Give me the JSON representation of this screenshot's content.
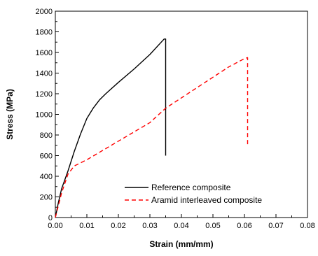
{
  "chart_data": {
    "type": "line",
    "xlabel": "Strain (mm/mm)",
    "ylabel": "Stress (MPa)",
    "xlim": [
      0,
      0.08
    ],
    "ylim": [
      0,
      2000
    ],
    "xticks": [
      "0.00",
      "0.01",
      "0.02",
      "0.03",
      "0.04",
      "0.05",
      "0.06",
      "0.07",
      "0.08"
    ],
    "yticks": [
      "0",
      "200",
      "400",
      "600",
      "800",
      "1000",
      "1200",
      "1400",
      "1600",
      "1800",
      "2000"
    ],
    "grid": false,
    "legend_position": "bottom-right",
    "series": [
      {
        "name": "Reference composite",
        "color": "#000000",
        "style": "solid",
        "x": [
          0,
          0.001,
          0.002,
          0.004,
          0.006,
          0.008,
          0.01,
          0.011,
          0.012,
          0.013,
          0.014,
          0.016,
          0.02,
          0.025,
          0.03,
          0.0345,
          0.035,
          0.035
        ],
        "y": [
          0,
          150,
          280,
          450,
          640,
          810,
          960,
          1010,
          1060,
          1100,
          1140,
          1200,
          1310,
          1440,
          1580,
          1730,
          1730,
          600
        ]
      },
      {
        "name": "Aramid interleaved composite",
        "color": "#ff0000",
        "style": "dashed",
        "x": [
          0,
          0.002,
          0.004,
          0.006,
          0.01,
          0.02,
          0.03,
          0.035,
          0.04,
          0.05,
          0.055,
          0.06,
          0.061,
          0.061
        ],
        "y": [
          0,
          240,
          420,
          500,
          560,
          740,
          920,
          1060,
          1160,
          1360,
          1460,
          1540,
          1550,
          700
        ]
      }
    ]
  }
}
